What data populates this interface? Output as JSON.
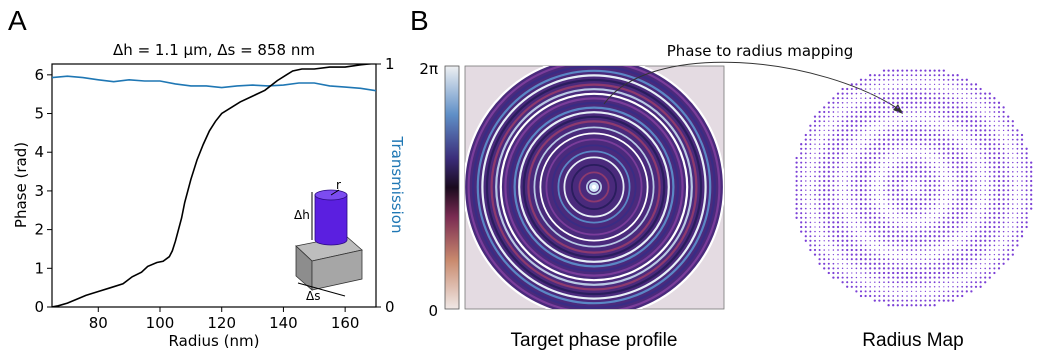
{
  "panel_a_letter": "A",
  "panel_b_letter": "B",
  "chart_data": [
    {
      "type": "line",
      "title": "Δh = 1.1 μm, Δs = 858 nm",
      "xlabel": "Radius (nm)",
      "ylabel": "Phase (rad)",
      "y2label": "Transmission",
      "xlim": [
        65,
        170
      ],
      "ylim": [
        0,
        6.28
      ],
      "y2lim": [
        0,
        1
      ],
      "xticks": [
        "80",
        "100",
        "120",
        "140",
        "160"
      ],
      "yticks": [
        "0",
        "1",
        "2",
        "3",
        "4",
        "5",
        "6"
      ],
      "y2ticks": [
        "0",
        "1"
      ],
      "series": [
        {
          "axis": "left",
          "color": "#000000",
          "x": [
            65,
            67,
            70,
            73,
            76,
            80,
            84,
            88,
            91,
            94,
            96,
            99,
            101,
            103,
            104,
            105,
            106,
            107,
            108,
            109,
            110,
            112,
            114,
            116,
            118,
            120,
            123,
            126,
            130,
            134,
            138,
            141,
            143,
            146,
            150,
            155,
            160,
            165,
            170
          ],
          "values": [
            0.0,
            0.03,
            0.1,
            0.2,
            0.3,
            0.4,
            0.5,
            0.6,
            0.78,
            0.9,
            1.05,
            1.15,
            1.18,
            1.3,
            1.45,
            1.7,
            2.0,
            2.3,
            2.7,
            3.0,
            3.3,
            3.8,
            4.2,
            4.55,
            4.8,
            5.0,
            5.15,
            5.3,
            5.45,
            5.6,
            5.85,
            6.0,
            6.1,
            6.15,
            6.15,
            6.2,
            6.2,
            6.26,
            6.3
          ]
        },
        {
          "axis": "right",
          "color": "#1f77b4",
          "x": [
            65,
            70,
            75,
            80,
            85,
            90,
            95,
            100,
            105,
            110,
            115,
            120,
            125,
            130,
            135,
            140,
            145,
            150,
            155,
            160,
            165,
            170
          ],
          "values": [
            0.944,
            0.95,
            0.944,
            0.935,
            0.927,
            0.935,
            0.93,
            0.93,
            0.918,
            0.91,
            0.91,
            0.903,
            0.91,
            0.913,
            0.91,
            0.913,
            0.922,
            0.922,
            0.91,
            0.905,
            0.9,
            0.89
          ]
        }
      ],
      "inset": {
        "height_label": "Δh",
        "spacing_label": "Δs",
        "radius_label": "r"
      }
    },
    {
      "type": "heatmap",
      "caption": "Target phase profile",
      "colorbar_top": "2π",
      "colorbar_bottom": "0"
    },
    {
      "type": "scatter",
      "caption": "Radius Map",
      "annotation": "Phase to radius mapping",
      "color": "#7b3fd6"
    }
  ]
}
